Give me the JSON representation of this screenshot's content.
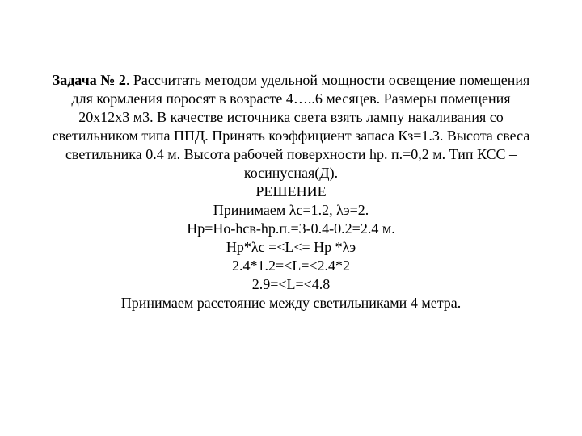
{
  "doc": {
    "title_label": "Задача № 2",
    "problem_text": ". Рассчитать методом удельной мощности освещение помещения для кормления поросят в возрасте 4…..6 месяцев. Размеры помещения 20х12х3 м3. В качестве источника света взять лампу накаливания со светильником типа ППД. Принять коэффициент запаса Кз=1.3. Высота свеса светильника 0.4 м. Высота рабочей поверхности hр. п.=0,2 м. Тип КСС – косинусная(Д).",
    "solution_heading": "РЕШЕНИЕ",
    "line1": "Принимаем λс=1.2, λэ=2.",
    "line2": "Нр=Но-hсв-hр.п.=3-0.4-0.2=2.4 м.",
    "line3": "Нр*λс =<L<= Нр *λэ",
    "line4": "2.4*1.2=<L=<2.4*2",
    "line5": "2.9=<L=<4.8",
    "line6": "Принимаем расстояние между светильниками 4 метра."
  },
  "style": {
    "font_family": "Times New Roman",
    "font_size_pt": 14,
    "text_color": "#000000",
    "background_color": "#ffffff"
  }
}
